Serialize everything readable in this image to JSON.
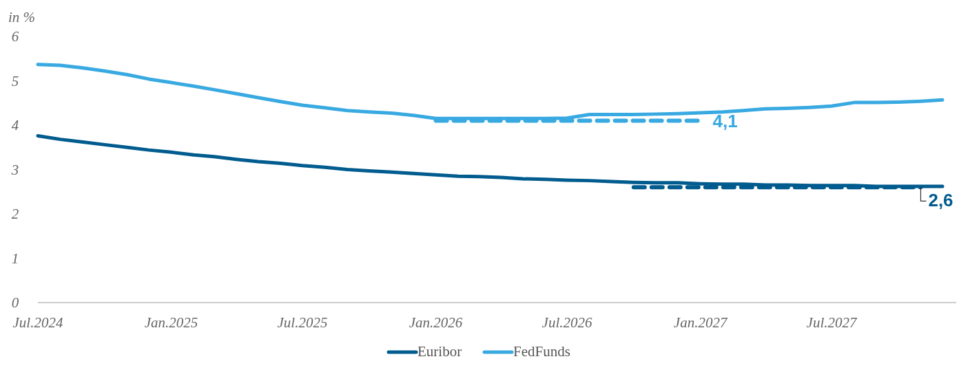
{
  "chart_data": {
    "type": "line",
    "ylabel": "in %",
    "x": [
      "2024-07",
      "2024-08",
      "2024-09",
      "2024-10",
      "2024-11",
      "2024-12",
      "2025-01",
      "2025-02",
      "2025-03",
      "2025-04",
      "2025-05",
      "2025-06",
      "2025-07",
      "2025-08",
      "2025-09",
      "2025-10",
      "2025-11",
      "2025-12",
      "2026-01",
      "2026-02",
      "2026-03",
      "2026-04",
      "2026-05",
      "2026-06",
      "2026-07",
      "2026-08",
      "2026-09",
      "2026-10",
      "2026-11",
      "2026-12",
      "2027-01",
      "2027-02",
      "2027-03",
      "2027-04",
      "2027-05",
      "2027-06",
      "2027-07",
      "2027-08",
      "2027-09",
      "2027-10",
      "2027-11",
      "2027-12"
    ],
    "series": [
      {
        "name": "Euribor",
        "color": "#005b8e",
        "values": [
          3.76,
          3.68,
          3.62,
          3.56,
          3.5,
          3.44,
          3.39,
          3.33,
          3.29,
          3.23,
          3.18,
          3.14,
          3.09,
          3.05,
          3.0,
          2.97,
          2.94,
          2.91,
          2.88,
          2.85,
          2.84,
          2.82,
          2.79,
          2.78,
          2.76,
          2.75,
          2.73,
          2.71,
          2.7,
          2.7,
          2.68,
          2.67,
          2.67,
          2.65,
          2.65,
          2.64,
          2.64,
          2.64,
          2.62,
          2.62,
          2.62,
          2.62
        ]
      },
      {
        "name": "FedFunds",
        "color": "#38a9e1",
        "values": [
          5.37,
          5.35,
          5.29,
          5.22,
          5.14,
          5.04,
          4.96,
          4.88,
          4.8,
          4.71,
          4.62,
          4.53,
          4.45,
          4.39,
          4.33,
          4.3,
          4.27,
          4.22,
          4.15,
          4.15,
          4.15,
          4.15,
          4.15,
          4.15,
          4.16,
          4.24,
          4.24,
          4.24,
          4.25,
          4.26,
          4.28,
          4.3,
          4.33,
          4.37,
          4.38,
          4.4,
          4.43,
          4.51,
          4.51,
          4.52,
          4.54,
          4.57
        ]
      },
      {
        "type": "line",
        "line_style": "dashed",
        "color": "#38a9e1",
        "x": [
          "2026-01",
          "2027-01"
        ],
        "values": [
          4.1,
          4.1
        ]
      },
      {
        "type": "line",
        "line_style": "dashed",
        "color": "#005b8e",
        "x": [
          "2026-10",
          "2027-11"
        ],
        "values": [
          2.6,
          2.6
        ]
      }
    ],
    "annotations": [
      {
        "text": "4,1",
        "x": "2027-01",
        "y": 4.1
      },
      {
        "text": "2,6",
        "x": "2027-11",
        "y": 2.6
      }
    ],
    "xlim": [
      "2024-07-01",
      "2027-12-20"
    ],
    "xticks": [
      {
        "value": "2024-07",
        "label": "Jul.2024"
      },
      {
        "value": "2025-01",
        "label": "Jan.2025"
      },
      {
        "value": "2025-07",
        "label": "Jul.2025"
      },
      {
        "value": "2026-01",
        "label": "Jan.2026"
      },
      {
        "value": "2026-07",
        "label": "Jul.2026"
      },
      {
        "value": "2027-01",
        "label": "Jan.2027"
      },
      {
        "value": "2027-07",
        "label": "Jul.2027"
      }
    ],
    "ylim": [
      0,
      6
    ],
    "yticks": [
      0,
      1,
      2,
      3,
      4,
      5,
      6
    ],
    "grid": false,
    "legend": "bottom",
    "line_style": "solid",
    "marker": "none"
  }
}
